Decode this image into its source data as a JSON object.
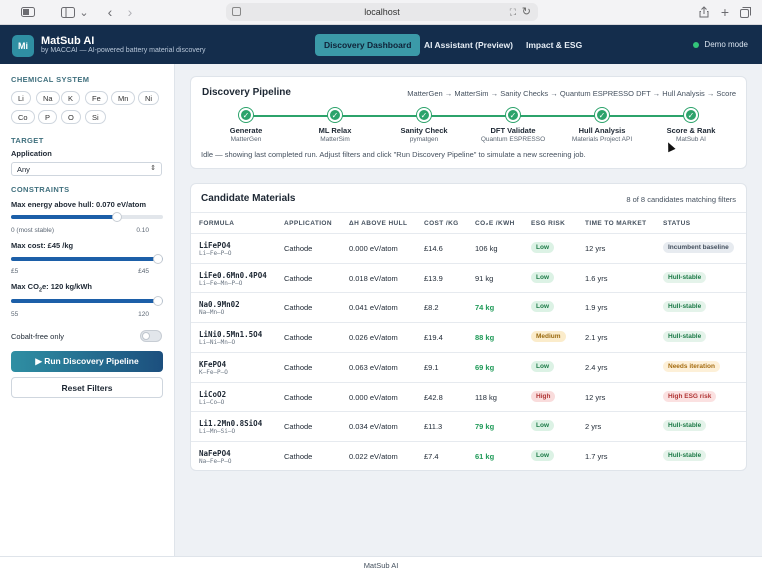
{
  "browser": {
    "url": "localhost"
  },
  "app": {
    "logo_text": "Mi",
    "title": "MatSub AI",
    "subtitle": "by MACCAI — AI-powered battery material discovery",
    "nav": [
      {
        "label": "Discovery Dashboard",
        "active": true
      },
      {
        "label": "AI Assistant (Preview)",
        "active": false
      },
      {
        "label": "Impact & ESG",
        "active": false
      }
    ],
    "demo_mode": "Demo mode"
  },
  "sidebar": {
    "chemical_system_heading": "CHEMICAL SYSTEM",
    "elements": [
      "Li",
      "Na",
      "K",
      "Fe",
      "Mn",
      "Ni",
      "Co",
      "P",
      "O",
      "Si"
    ],
    "target_heading": "TARGET",
    "application_label": "Application",
    "application_value": "Any",
    "constraints_heading": "CONSTRAINTS",
    "hull_label": "Max energy above hull: 0.070 eV/atom",
    "hull_min": "0 (most stable)",
    "hull_max": "0.10",
    "hull_fraction": 0.7,
    "cost_label": "Max cost: £45 /kg",
    "cost_min": "£5",
    "cost_max": "£45",
    "cost_fraction": 1.0,
    "co2_label_prefix": "Max CO",
    "co2_label_sub": "2",
    "co2_label_suffix": "e: 120 kg/kWh",
    "co2_min": "55",
    "co2_max": "120",
    "co2_fraction": 1.0,
    "cobalt_free_label": "Cobalt-free only",
    "cobalt_free_on": false,
    "run_button": "▶ Run Discovery Pipeline",
    "reset_button": "Reset Filters"
  },
  "pipeline": {
    "title": "Discovery Pipeline",
    "flow": "MatterGen → MatterSim → Sanity Checks → Quantum ESPRESSO DFT → Hull Analysis → Score",
    "steps": [
      {
        "name": "Generate",
        "tool": "MatterGen"
      },
      {
        "name": "ML Relax",
        "tool": "MatterSim"
      },
      {
        "name": "Sanity Check",
        "tool": "pymatgen"
      },
      {
        "name": "DFT Validate",
        "tool": "Quantum ESPRESSO"
      },
      {
        "name": "Hull Analysis",
        "tool": "Materials Project API"
      },
      {
        "name": "Score & Rank",
        "tool": "MatSub AI"
      }
    ],
    "status": "Idle — showing last completed run. Adjust filters and click \"Run Discovery Pipeline\" to simulate a new screening job."
  },
  "candidates": {
    "title": "Candidate Materials",
    "count_text": "8 of 8 candidates matching filters",
    "headers": [
      "FORMULA",
      "APPLICATION",
      "ΔH ABOVE HULL",
      "COST /KG",
      "CO₂E /KWH",
      "ESG RISK",
      "TIME TO MARKET",
      "STATUS"
    ],
    "rows": [
      {
        "formula": "LiFePO4",
        "elements": "Li–Fe–P–O",
        "application": "Cathode",
        "hull": "0.000 eV/atom",
        "cost": "£14.6",
        "co2": "106 kg",
        "co2_good": false,
        "esg": "Low",
        "esg_class": "low",
        "ttm": "12 yrs",
        "status": "Incumbent baseline",
        "status_class": "neutral"
      },
      {
        "formula": "LiFe0.6Mn0.4PO4",
        "elements": "Li–Fe–Mn–P–O",
        "application": "Cathode",
        "hull": "0.018 eV/atom",
        "cost": "£13.9",
        "co2": "91 kg",
        "co2_good": false,
        "esg": "Low",
        "esg_class": "low",
        "ttm": "1.6 yrs",
        "status": "Hull-stable",
        "status_class": "stable"
      },
      {
        "formula": "Na0.9Mn02",
        "elements": "Na–Mn–O",
        "application": "Cathode",
        "hull": "0.041 eV/atom",
        "cost": "£8.2",
        "co2": "74 kg",
        "co2_good": true,
        "esg": "Low",
        "esg_class": "low",
        "ttm": "1.9 yrs",
        "status": "Hull-stable",
        "status_class": "stable"
      },
      {
        "formula": "LiNi0.5Mn1.5O4",
        "elements": "Li–Ni–Mn–O",
        "application": "Cathode",
        "hull": "0.026 eV/atom",
        "cost": "£19.4",
        "co2": "88 kg",
        "co2_good": true,
        "esg": "Medium",
        "esg_class": "medium",
        "ttm": "2.1 yrs",
        "status": "Hull-stable",
        "status_class": "stable"
      },
      {
        "formula": "KFePO4",
        "elements": "K–Fe–P–O",
        "application": "Cathode",
        "hull": "0.063 eV/atom",
        "cost": "£9.1",
        "co2": "69 kg",
        "co2_good": true,
        "esg": "Low",
        "esg_class": "low",
        "ttm": "2.4 yrs",
        "status": "Needs iteration",
        "status_class": "iter"
      },
      {
        "formula": "LiCoO2",
        "elements": "Li–Co–O",
        "application": "Cathode",
        "hull": "0.000 eV/atom",
        "cost": "£42.8",
        "co2": "118 kg",
        "co2_good": false,
        "esg": "High",
        "esg_class": "high",
        "ttm": "12 yrs",
        "status": "High ESG risk",
        "status_class": "risk"
      },
      {
        "formula": "Li1.2Mn0.8SiO4",
        "elements": "Li–Mn–Si–O",
        "application": "Cathode",
        "hull": "0.034 eV/atom",
        "cost": "£11.3",
        "co2": "79 kg",
        "co2_good": true,
        "esg": "Low",
        "esg_class": "low",
        "ttm": "2 yrs",
        "status": "Hull-stable",
        "status_class": "stable"
      },
      {
        "formula": "NaFePO4",
        "elements": "Na–Fe–P–O",
        "application": "Cathode",
        "hull": "0.022 eV/atom",
        "cost": "£7.4",
        "co2": "61 kg",
        "co2_good": true,
        "esg": "Low",
        "esg_class": "low",
        "ttm": "1.7 yrs",
        "status": "Hull-stable",
        "status_class": "stable"
      }
    ]
  },
  "footer": {
    "text": "MatSub AI"
  },
  "icons": {
    "sidebar_toggle": "sidebar-icon",
    "back": "chevron-left-icon",
    "forward": "chevron-right-icon",
    "share": "share-icon",
    "new_tab": "plus-icon",
    "tabs": "tabs-icon",
    "step_done": "check-icon"
  },
  "colors": {
    "header_bg": "#142d4c",
    "accent": "#3b9aa8",
    "success": "#2ca36b",
    "slider_fill": "#1c5fa8"
  }
}
